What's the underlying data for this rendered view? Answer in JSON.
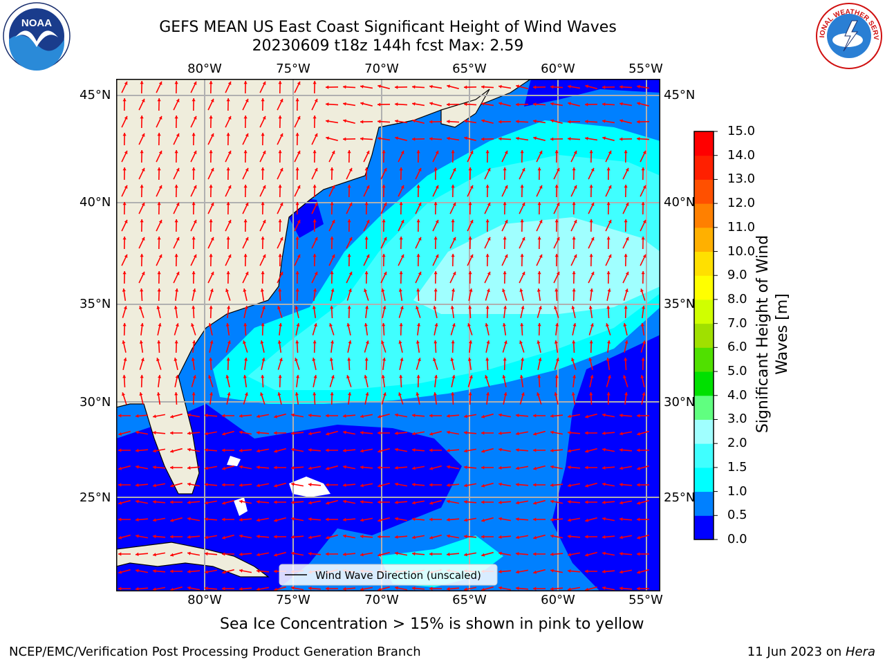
{
  "title": {
    "line1": "GEFS MEAN US East Coast Significant Height of Wind Waves",
    "line2": "20230609 t18z 144h fcst   Max: 2.59"
  },
  "map": {
    "lon_labels": [
      "80°W",
      "75°W",
      "70°W",
      "65°W",
      "60°W",
      "55°W"
    ],
    "lat_labels": [
      "45°N",
      "40°N",
      "35°N",
      "30°N",
      "25°N"
    ],
    "legend_text": "Wind Wave Direction (unscaled)",
    "arrow_color": "#ff0000",
    "land_color": "#efeddc"
  },
  "colorbar": {
    "title_line1": "Significant Height of Wind",
    "title_line2": "Waves [m]",
    "ticks": [
      "0.0",
      "0.5",
      "1.0",
      "1.5",
      "2.0",
      "3.0",
      "4.0",
      "5.0",
      "6.0",
      "7.0",
      "8.0",
      "9.0",
      "10.0",
      "11.0",
      "12.0",
      "13.0",
      "14.0",
      "15.0"
    ],
    "colors": [
      "#0000ff",
      "#0080ff",
      "#00ffff",
      "#40ffff",
      "#a0ffff",
      "#60ff80",
      "#00e000",
      "#50e000",
      "#a0e000",
      "#d0ff00",
      "#ffff00",
      "#ffe000",
      "#ffb000",
      "#ff8000",
      "#ff5000",
      "#ff2000",
      "#ff0000"
    ]
  },
  "logos": {
    "noaa_text": "NOAA",
    "nws_text": "NATIONAL WEATHER SERVICE"
  },
  "footer": {
    "note": "Sea Ice Concentration > 15% is shown in pink to yellow",
    "credit": "NCEP/EMC/Verification Post Processing Product Generation Branch",
    "date": "11 Jun 2023 on ",
    "machine": "Hera"
  }
}
